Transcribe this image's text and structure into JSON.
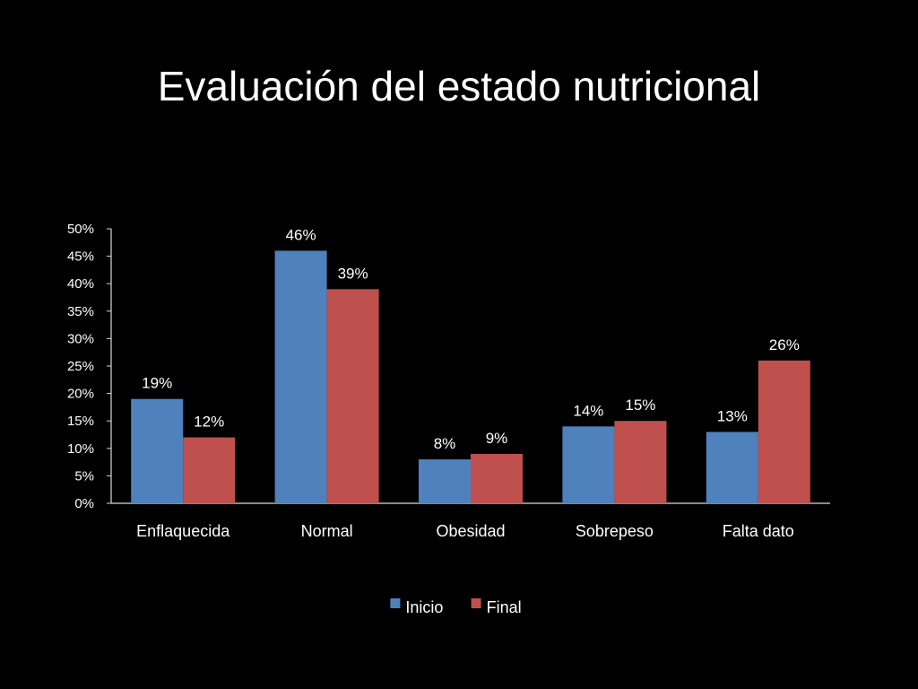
{
  "slide": {
    "title": "Evaluación del estado nutricional"
  },
  "chart_data": {
    "type": "bar",
    "title": "",
    "xlabel": "",
    "ylabel": "",
    "ylim": [
      0,
      50
    ],
    "yticks": [
      "0%",
      "5%",
      "10%",
      "15%",
      "20%",
      "25%",
      "30%",
      "35%",
      "40%",
      "45%",
      "50%"
    ],
    "categories": [
      "Enflaquecida",
      "Normal",
      "Obesidad",
      "Sobrepeso",
      "Falta dato"
    ],
    "series": [
      {
        "name": "Inicio",
        "color": "#4f81bd",
        "values": [
          19,
          46,
          8,
          14,
          13
        ],
        "labels": [
          "19%",
          "46%",
          "8%",
          "14%",
          "13%"
        ]
      },
      {
        "name": "Final",
        "color": "#c0504d",
        "values": [
          12,
          39,
          9,
          15,
          26
        ],
        "labels": [
          "12%",
          "39%",
          "9%",
          "15%",
          "26%"
        ]
      }
    ],
    "grid": false,
    "legend": "bottom"
  }
}
